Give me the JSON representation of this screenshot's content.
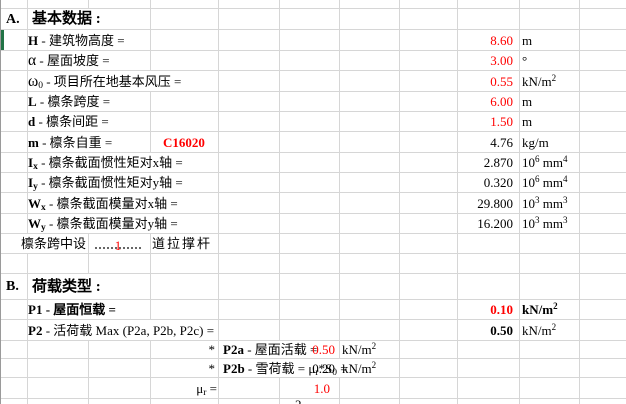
{
  "colors": {
    "value_red": "#ff0000",
    "text": "#000000",
    "grid_line": "#d6d6d6",
    "sheet_edge": "#9a9a9a",
    "green_marker": "#217346"
  },
  "section_a": {
    "letter": "A.",
    "title": "基本数据 :"
  },
  "section_b": {
    "letter": "B.",
    "title": "荷载类型 :"
  },
  "basic": [
    {
      "label": [
        {
          "t": "H",
          "b": true
        },
        {
          "t": " - 建筑物高度 ="
        }
      ],
      "value": "8.60",
      "unit": [
        {
          "t": "m"
        }
      ]
    },
    {
      "label": [
        {
          "t": "α",
          "big": true
        },
        {
          "t": " - 屋面坡度 ="
        }
      ],
      "value": "3.00",
      "unit": [
        {
          "t": "°"
        }
      ]
    },
    {
      "label": [
        {
          "t": "ω",
          "big": true
        },
        {
          "t": "0",
          "sub": true
        },
        {
          "t": " - 项目所在地基本风压 ="
        }
      ],
      "value": "0.55",
      "unit": [
        {
          "t": "kN/m"
        },
        {
          "t": "2",
          "sup": true
        }
      ]
    },
    {
      "label": [
        {
          "t": "L",
          "b": true
        },
        {
          "t": " - 檩条跨度 ="
        }
      ],
      "value": "6.00",
      "unit": [
        {
          "t": "m"
        }
      ]
    },
    {
      "label": [
        {
          "t": "d",
          "b": true
        },
        {
          "t": " - 檩条间距 ="
        }
      ],
      "value": "1.50",
      "unit": [
        {
          "t": "m"
        }
      ]
    },
    {
      "label": [
        {
          "t": "m",
          "b": true
        },
        {
          "t": " - 檩条自重 ="
        }
      ],
      "extra": "C16020",
      "value": "4.76",
      "unit": [
        {
          "t": "kg/m"
        }
      ]
    },
    {
      "label": [
        {
          "t": "I",
          "b": true
        },
        {
          "t": "x",
          "b": true,
          "sub": true
        },
        {
          "t": " - 檩条截面惯性矩对x轴 ="
        }
      ],
      "value": "2.870",
      "unit": [
        {
          "t": "10"
        },
        {
          "t": "6",
          "sup": true
        },
        {
          "t": " mm"
        },
        {
          "t": "4",
          "sup": true
        }
      ]
    },
    {
      "label": [
        {
          "t": "I",
          "b": true
        },
        {
          "t": "y",
          "b": true,
          "sub": true
        },
        {
          "t": " - 檩条截面惯性矩对y轴 ="
        }
      ],
      "value": "0.320",
      "unit": [
        {
          "t": "10"
        },
        {
          "t": "6",
          "sup": true
        },
        {
          "t": " mm"
        },
        {
          "t": "4",
          "sup": true
        }
      ]
    },
    {
      "label": [
        {
          "t": "W",
          "b": true
        },
        {
          "t": "x",
          "b": true,
          "sub": true
        },
        {
          "t": " - 檩条截面模量对x轴 ="
        }
      ],
      "value": "29.800",
      "unit": [
        {
          "t": "10"
        },
        {
          "t": "3",
          "sup": true
        },
        {
          "t": " mm"
        },
        {
          "t": "3",
          "sup": true
        }
      ]
    },
    {
      "label": [
        {
          "t": "W",
          "b": true
        },
        {
          "t": "y",
          "b": true,
          "sub": true
        },
        {
          "t": " - 檩条截面模量对y轴 ="
        }
      ],
      "value": "16.200",
      "unit": [
        {
          "t": "10"
        },
        {
          "t": "3",
          "sup": true
        },
        {
          "t": " mm"
        },
        {
          "t": "3",
          "sup": true
        }
      ]
    }
  ],
  "brace_row": {
    "prefix": "檩条跨中设",
    "count": "1",
    "suffix": "道拉撑杆"
  },
  "loads": [
    {
      "label": [
        {
          "t": "P1",
          "b": true
        },
        {
          "t": " - 屋面恒载 ="
        }
      ],
      "value": "0.10",
      "unit": [
        {
          "t": "kN/m"
        },
        {
          "t": "2",
          "sup": true
        }
      ]
    },
    {
      "label": [
        {
          "t": "P2",
          "b": true
        },
        {
          "t": " - 活荷载 Max (P2a, P2b, P2c) ="
        }
      ],
      "value": "0.50",
      "unit": [
        {
          "t": "kN/m"
        },
        {
          "t": "2",
          "sup": true
        }
      ]
    },
    {
      "star": "*",
      "label": [
        {
          "t": "P2a",
          "b": true
        },
        {
          "t": " - 屋面活载 ="
        }
      ],
      "value": "0.50",
      "unit": [
        {
          "t": "kN/m"
        },
        {
          "t": "2",
          "sup": true
        }
      ]
    },
    {
      "star": "*",
      "label": [
        {
          "t": "P2b",
          "b": true
        },
        {
          "t": " - 雪荷载 = μ"
        },
        {
          "t": "r",
          "sub": true
        },
        {
          "t": "*S"
        },
        {
          "t": "0",
          "sub": true
        },
        {
          "t": " ="
        }
      ],
      "value": "0.20",
      "unit": [
        {
          "t": "kN/m"
        },
        {
          "t": "2",
          "sup": true
        }
      ]
    }
  ],
  "mu_row": {
    "label": [
      {
        "t": "μ"
      },
      {
        "t": "r",
        "sub": true
      },
      {
        "t": " ="
      }
    ],
    "value": "1.0"
  },
  "clipped_next_row": {
    "glyph": "2"
  }
}
